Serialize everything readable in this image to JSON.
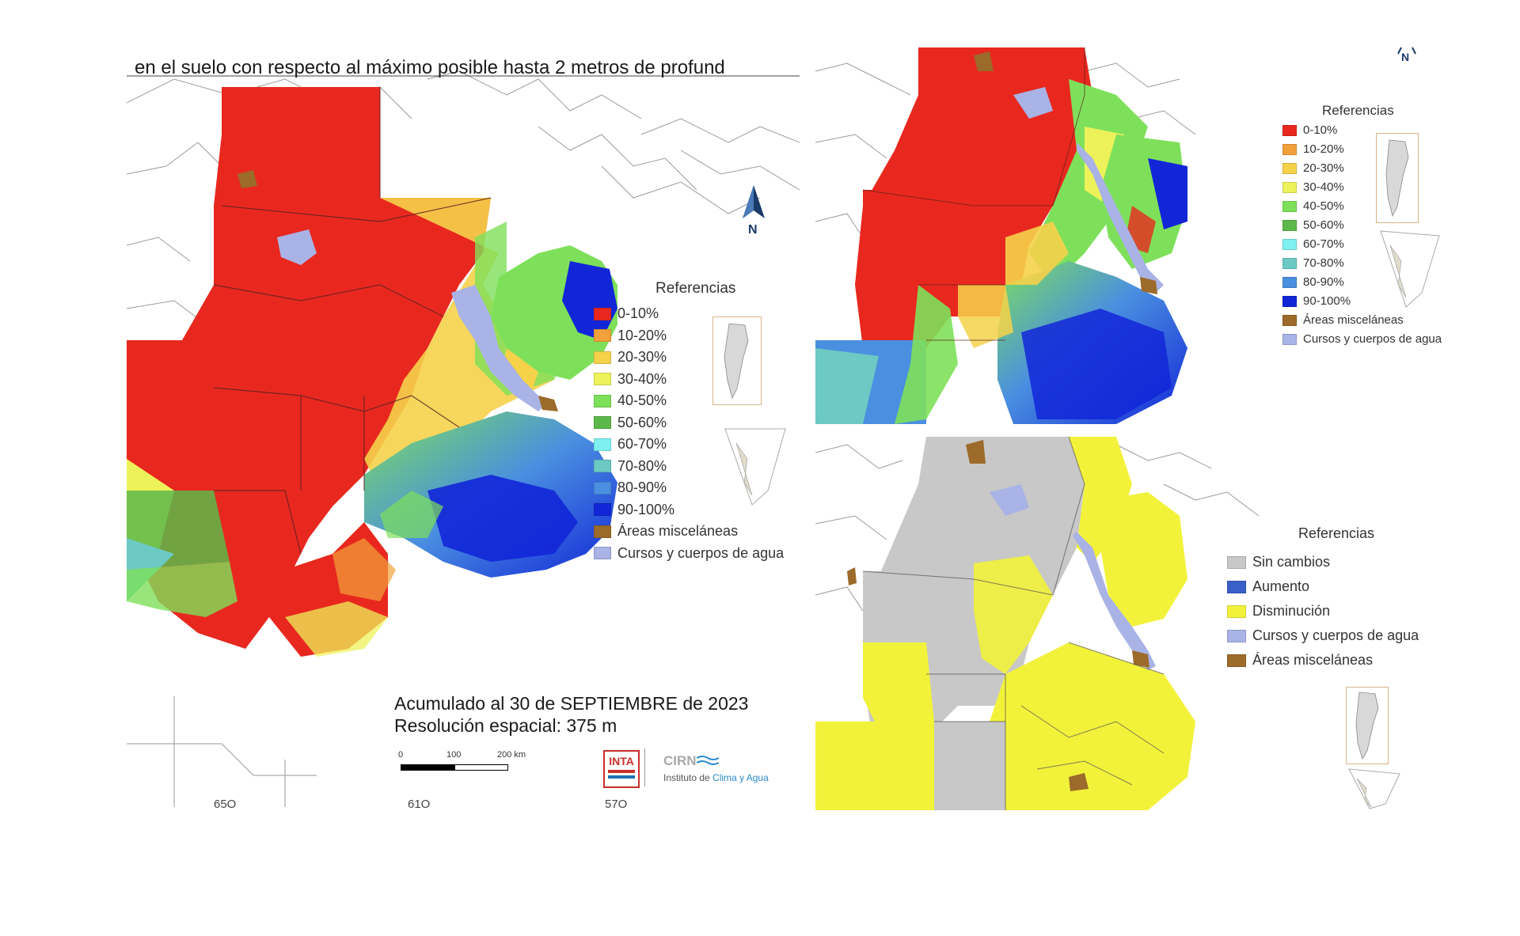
{
  "main_map": {
    "title": "en el suelo con respecto al máximo posible hasta 2 metros de profund",
    "legend_title": "Referencias",
    "legend": [
      {
        "label": "0-10%",
        "color": "#e8281f"
      },
      {
        "label": "10-20%",
        "color": "#f2a13a"
      },
      {
        "label": "20-30%",
        "color": "#f5d24a"
      },
      {
        "label": "30-40%",
        "color": "#eef25a"
      },
      {
        "label": "40-50%",
        "color": "#7ee05a"
      },
      {
        "label": "50-60%",
        "color": "#5cb84a"
      },
      {
        "label": "60-70%",
        "color": "#7ff0f0"
      },
      {
        "label": "70-80%",
        "color": "#6cc9c4"
      },
      {
        "label": "80-90%",
        "color": "#4a8fe0"
      },
      {
        "label": "90-100%",
        "color": "#1226d8"
      },
      {
        "label": "Áreas misceláneas",
        "color": "#9c6a2a"
      },
      {
        "label": "Cursos y cuerpos de agua",
        "color": "#a9b3e6"
      }
    ],
    "north_label": "N",
    "accumulated": "Acumulado al 30 de SEPTIEMBRE de 2023",
    "resolution": "Resolución espacial: 375 m",
    "scale": {
      "l0": "0",
      "l1": "100",
      "l2": "200 km"
    },
    "logo_inta": "INTA",
    "logo_cirn": "CIRN",
    "logo_institute_a": "Instituto de",
    "logo_institute_b": "Clima y Agua",
    "x_ticks": [
      "65O",
      "61O",
      "57O"
    ]
  },
  "top_right_map": {
    "north_label": "N",
    "legend_title": "Referencias",
    "legend": [
      {
        "label": "0-10%",
        "color": "#e8281f"
      },
      {
        "label": "10-20%",
        "color": "#f2a13a"
      },
      {
        "label": "20-30%",
        "color": "#f5d24a"
      },
      {
        "label": "30-40%",
        "color": "#eef25a"
      },
      {
        "label": "40-50%",
        "color": "#7ee05a"
      },
      {
        "label": "50-60%",
        "color": "#5cb84a"
      },
      {
        "label": "60-70%",
        "color": "#7ff0f0"
      },
      {
        "label": "70-80%",
        "color": "#6cc9c4"
      },
      {
        "label": "80-90%",
        "color": "#4a8fe0"
      },
      {
        "label": "90-100%",
        "color": "#1226d8"
      },
      {
        "label": "Áreas misceláneas",
        "color": "#9c6a2a"
      },
      {
        "label": "Cursos y cuerpos de agua",
        "color": "#a9b3e6"
      }
    ]
  },
  "bottom_right_map": {
    "legend_title": "Referencias",
    "legend": [
      {
        "label": "Sin cambios",
        "color": "#c8c8c8"
      },
      {
        "label": "Aumento",
        "color": "#3a5fc8"
      },
      {
        "label": "Disminución",
        "color": "#f2f23a"
      },
      {
        "label": "Cursos y cuerpos de agua",
        "color": "#a9b3e6"
      },
      {
        "label": "Áreas misceláneas",
        "color": "#9c6a2a"
      }
    ]
  }
}
